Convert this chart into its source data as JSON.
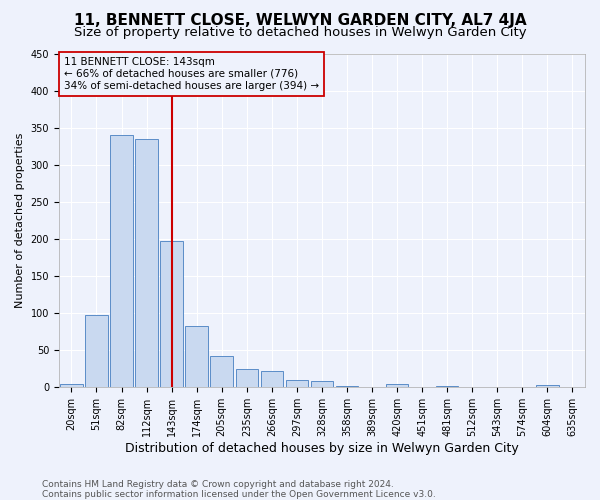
{
  "title": "11, BENNETT CLOSE, WELWYN GARDEN CITY, AL7 4JA",
  "subtitle": "Size of property relative to detached houses in Welwyn Garden City",
  "xlabel": "Distribution of detached houses by size in Welwyn Garden City",
  "ylabel": "Number of detached properties",
  "footer_line1": "Contains HM Land Registry data © Crown copyright and database right 2024.",
  "footer_line2": "Contains public sector information licensed under the Open Government Licence v3.0.",
  "property_label": "11 BENNETT CLOSE: 143sqm",
  "annotation_line2": "← 66% of detached houses are smaller (776)",
  "annotation_line3": "34% of semi-detached houses are larger (394) →",
  "bar_color": "#c9d9f0",
  "bar_edge_color": "#5b8dc8",
  "vline_color": "#cc0000",
  "annotation_box_edge_color": "#cc0000",
  "background_color": "#eef2fc",
  "grid_color": "#ffffff",
  "categories": [
    "20sqm",
    "51sqm",
    "82sqm",
    "112sqm",
    "143sqm",
    "174sqm",
    "205sqm",
    "235sqm",
    "266sqm",
    "297sqm",
    "328sqm",
    "358sqm",
    "389sqm",
    "420sqm",
    "451sqm",
    "481sqm",
    "512sqm",
    "543sqm",
    "574sqm",
    "604sqm",
    "635sqm"
  ],
  "values": [
    5,
    97,
    340,
    335,
    197,
    83,
    42,
    25,
    22,
    10,
    8,
    2,
    0,
    5,
    0,
    2,
    0,
    1,
    0,
    3,
    0
  ],
  "ylim": [
    0,
    450
  ],
  "yticks": [
    0,
    50,
    100,
    150,
    200,
    250,
    300,
    350,
    400,
    450
  ],
  "vline_x_index": 4,
  "title_fontsize": 11,
  "subtitle_fontsize": 9.5,
  "xlabel_fontsize": 9,
  "ylabel_fontsize": 8,
  "tick_fontsize": 7,
  "annotation_fontsize": 7.5,
  "footer_fontsize": 6.5
}
